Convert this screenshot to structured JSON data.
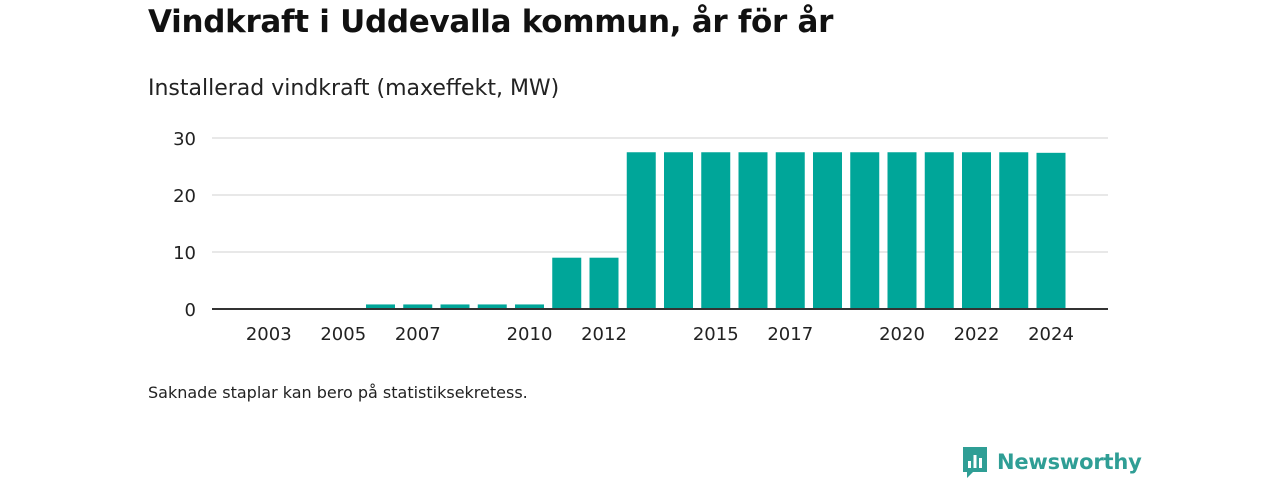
{
  "title": "Vindkraft i Uddevalla kommun, år för år",
  "subtitle": "Installerad vindkraft (maxeffekt, MW)",
  "note": "Saknade staplar kan bero på statistiksekretess.",
  "brand": {
    "name": "Newsworthy",
    "color": "#2f9e95",
    "icon": "newsworthy-logo-icon"
  },
  "chart_data": {
    "type": "bar",
    "categories": [
      "2002",
      "2003",
      "2004",
      "2005",
      "2006",
      "2007",
      "2008",
      "2009",
      "2010",
      "2011",
      "2012",
      "2013",
      "2014",
      "2015",
      "2016",
      "2017",
      "2018",
      "2019",
      "2020",
      "2021",
      "2022",
      "2023",
      "2024"
    ],
    "values": [
      0,
      0,
      0,
      0,
      0.8,
      0.8,
      0.8,
      0.8,
      0.8,
      9,
      9,
      27.5,
      27.5,
      27.5,
      27.5,
      27.5,
      27.5,
      27.5,
      27.5,
      27.5,
      27.5,
      27.5,
      27.4
    ],
    "x_tick_labels": [
      "2003",
      "2005",
      "2007",
      "2010",
      "2012",
      "2015",
      "2017",
      "2020",
      "2022",
      "2024"
    ],
    "y_ticks": [
      0,
      10,
      20,
      30
    ],
    "ylim": [
      0,
      30
    ],
    "bar_color": "#00a699",
    "grid": true
  }
}
